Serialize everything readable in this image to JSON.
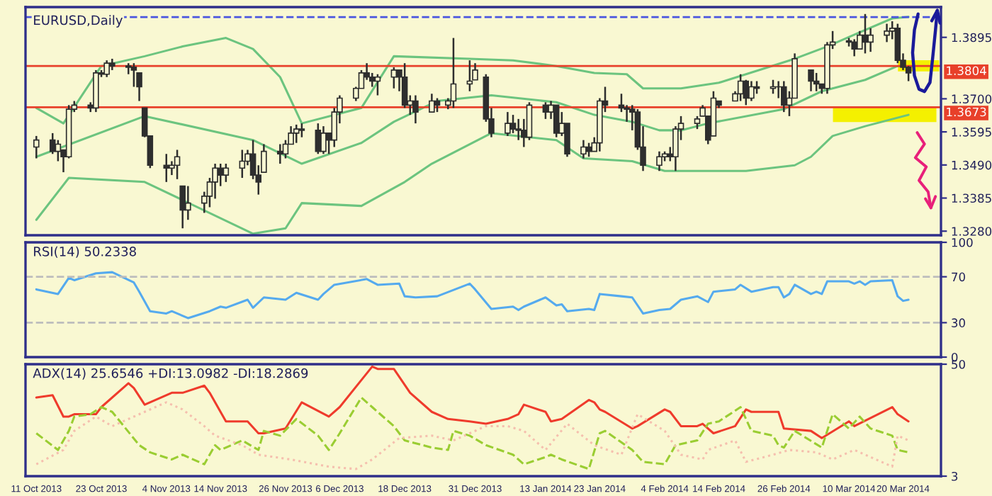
{
  "chart_data": [
    {
      "type": "candlestick",
      "title": "EURUSD,Daily",
      "xlim": [
        "2013-10-09",
        "2014-03-27"
      ],
      "ylim": [
        1.3267,
        1.3991
      ],
      "yticks": [
        {
          "value": 1.328,
          "label": "1.3280"
        },
        {
          "value": 1.3385,
          "label": "1.3385"
        },
        {
          "value": 1.349,
          "label": "1.3490"
        },
        {
          "value": 1.3595,
          "label": "1.3595"
        },
        {
          "value": 1.37,
          "label": "1.3700"
        },
        {
          "value": 1.3895,
          "label": "1.3895"
        }
      ],
      "tick_labels": "y",
      "ref_lines": [
        {
          "axis": "y",
          "value": 1.3804,
          "label": "1.3804",
          "color": "#e8402a",
          "line_style": "solid"
        },
        {
          "axis": "y",
          "value": 1.3673,
          "label": "1.3673",
          "color": "#e8402a",
          "line_style": "solid"
        },
        {
          "axis": "y",
          "value": 1.3959,
          "color": "#4a55e0",
          "line_style": "dashed"
        }
      ],
      "series": [
        {
          "type": "candlestick",
          "color": "#2e2e2e",
          "x": [
            "2013-10-11",
            "2013-10-14",
            "2013-10-15",
            "2013-10-16",
            "2013-10-17",
            "2013-10-18",
            "2013-10-21",
            "2013-10-22",
            "2013-10-23",
            "2013-10-24",
            "2013-10-25",
            "2013-10-28",
            "2013-10-29",
            "2013-10-30",
            "2013-10-31",
            "2013-11-01",
            "2013-11-04",
            "2013-11-05",
            "2013-11-06",
            "2013-11-07",
            "2013-11-08",
            "2013-11-11",
            "2013-11-12",
            "2013-11-13",
            "2013-11-14",
            "2013-11-15",
            "2013-11-18",
            "2013-11-19",
            "2013-11-20",
            "2013-11-21",
            "2013-11-22",
            "2013-11-25",
            "2013-11-26",
            "2013-11-27",
            "2013-11-28",
            "2013-11-29",
            "2013-12-02",
            "2013-12-03",
            "2013-12-04",
            "2013-12-05",
            "2013-12-06",
            "2013-12-09",
            "2013-12-10",
            "2013-12-11",
            "2013-12-12",
            "2013-12-13",
            "2013-12-16",
            "2013-12-17",
            "2013-12-18",
            "2013-12-19",
            "2013-12-20",
            "2013-12-23",
            "2013-12-24",
            "2013-12-26",
            "2013-12-27",
            "2013-12-30",
            "2013-12-31",
            "2014-01-02",
            "2014-01-03",
            "2014-01-06",
            "2014-01-07",
            "2014-01-08",
            "2014-01-09",
            "2014-01-10",
            "2014-01-13",
            "2014-01-14",
            "2014-01-15",
            "2014-01-16",
            "2014-01-17",
            "2014-01-20",
            "2014-01-21",
            "2014-01-22",
            "2014-01-23",
            "2014-01-24",
            "2014-01-27",
            "2014-01-28",
            "2014-01-29",
            "2014-01-30",
            "2014-01-31",
            "2014-02-03",
            "2014-02-04",
            "2014-02-05",
            "2014-02-06",
            "2014-02-07",
            "2014-02-10",
            "2014-02-11",
            "2014-02-12",
            "2014-02-13",
            "2014-02-14",
            "2014-02-17",
            "2014-02-18",
            "2014-02-19",
            "2014-02-20",
            "2014-02-21",
            "2014-02-24",
            "2014-02-25",
            "2014-02-26",
            "2014-02-27",
            "2014-02-28",
            "2014-03-03",
            "2014-03-04",
            "2014-03-05",
            "2014-03-06",
            "2014-03-07",
            "2014-03-10",
            "2014-03-11",
            "2014-03-12",
            "2014-03-13",
            "2014-03-14",
            "2014-03-17",
            "2014-03-18",
            "2014-03-19",
            "2014-03-20",
            "2014-03-21"
          ],
          "ohlc": [
            [
              1.3547,
              1.3582,
              1.3511,
              1.3569
            ],
            [
              1.3569,
              1.3591,
              1.3525,
              1.3533
            ],
            [
              1.3533,
              1.3569,
              1.3502,
              1.3556
            ],
            [
              1.3538,
              1.3538,
              1.3467,
              1.3516
            ],
            [
              1.3516,
              1.368,
              1.3511,
              1.3667
            ],
            [
              1.3667,
              1.3693,
              1.3658,
              1.368
            ],
            [
              1.368,
              1.3689,
              1.3658,
              1.3671
            ],
            [
              1.3671,
              1.3791,
              1.3658,
              1.3782
            ],
            [
              1.3782,
              1.3791,
              1.3769,
              1.3778
            ],
            [
              1.3778,
              1.3822,
              1.3769,
              1.3813
            ],
            [
              1.3813,
              1.3827,
              1.3791,
              1.3804
            ],
            [
              1.3804,
              1.3813,
              1.3778,
              1.38
            ],
            [
              1.38,
              1.3813,
              1.3738,
              1.3791
            ],
            [
              1.3782,
              1.3782,
              1.3693,
              1.3738
            ],
            [
              1.3671,
              1.3671,
              1.3578,
              1.3582
            ],
            [
              1.3582,
              1.3582,
              1.348,
              1.3489
            ],
            [
              1.3489,
              1.3525,
              1.3436,
              1.348
            ],
            [
              1.348,
              1.3502,
              1.3458,
              1.3489
            ],
            [
              1.3489,
              1.3538,
              1.3445,
              1.3516
            ],
            [
              1.3423,
              1.3423,
              1.3289,
              1.3347
            ],
            [
              1.3347,
              1.3423,
              1.3316,
              1.3369
            ],
            [
              1.3369,
              1.3405,
              1.3338,
              1.3391
            ],
            [
              1.3391,
              1.3449,
              1.3356,
              1.3436
            ],
            [
              1.3436,
              1.3494,
              1.3383,
              1.348
            ],
            [
              1.348,
              1.3494,
              1.3423,
              1.3458
            ],
            [
              1.3458,
              1.3494,
              1.3436,
              1.348
            ],
            [
              1.348,
              1.3538,
              1.3449,
              1.3502
            ],
            [
              1.3502,
              1.3538,
              1.3489,
              1.3525
            ],
            [
              1.3525,
              1.3569,
              1.3445,
              1.3458
            ],
            [
              1.3458,
              1.3489,
              1.3396,
              1.3436
            ],
            [
              1.3467,
              1.3556,
              1.3467,
              1.3533
            ],
            [
              1.3533,
              1.3556,
              1.3494,
              1.3525
            ],
            [
              1.3525,
              1.3569,
              1.3511,
              1.3556
            ],
            [
              1.3556,
              1.3613,
              1.3556,
              1.3591
            ],
            [
              1.3591,
              1.3618,
              1.356,
              1.3604
            ],
            [
              1.3604,
              1.3622,
              1.3578,
              1.36
            ],
            [
              1.36,
              1.3622,
              1.3525,
              1.3533
            ],
            [
              1.3533,
              1.3613,
              1.3525,
              1.3591
            ],
            [
              1.3591,
              1.3591,
              1.3525,
              1.3569
            ],
            [
              1.3569,
              1.3671,
              1.3547,
              1.3658
            ],
            [
              1.3658,
              1.3711,
              1.3622,
              1.3702
            ],
            [
              1.3702,
              1.3738,
              1.3693,
              1.3733
            ],
            [
              1.3733,
              1.3791,
              1.3733,
              1.3782
            ],
            [
              1.3782,
              1.3813,
              1.376,
              1.3769
            ],
            [
              1.3769,
              1.3782,
              1.3738,
              1.3756
            ],
            [
              1.3756,
              1.3778,
              1.3711,
              1.3769
            ],
            [
              1.3769,
              1.38,
              1.3733,
              1.3791
            ],
            [
              1.3791,
              1.3791,
              1.3724,
              1.3769
            ],
            [
              1.3769,
              1.3813,
              1.3671,
              1.368
            ],
            [
              1.368,
              1.3711,
              1.3649,
              1.3693
            ],
            [
              1.3693,
              1.3711,
              1.3622,
              1.3658
            ],
            [
              1.3658,
              1.3716,
              1.3658,
              1.3693
            ],
            [
              1.3693,
              1.3702,
              1.3658,
              1.368
            ],
            [
              1.368,
              1.3702,
              1.3667,
              1.3693
            ],
            [
              1.3693,
              1.3893,
              1.3671,
              1.3747
            ],
            [
              1.3747,
              1.3822,
              1.3724,
              1.3756
            ],
            [
              1.376,
              1.3813,
              1.376,
              1.3791
            ],
            [
              1.3769,
              1.3778,
              1.3627,
              1.3636
            ],
            [
              1.3636,
              1.3671,
              1.3578,
              1.3591
            ],
            [
              1.3591,
              1.3658,
              1.3582,
              1.3622
            ],
            [
              1.3622,
              1.3649,
              1.3591,
              1.3604
            ],
            [
              1.3604,
              1.3636,
              1.3569,
              1.36
            ],
            [
              1.36,
              1.3636,
              1.3547,
              1.3578
            ],
            [
              1.3578,
              1.3689,
              1.3569,
              1.368
            ],
            [
              1.368,
              1.3689,
              1.3636,
              1.3658
            ],
            [
              1.3658,
              1.3693,
              1.3636,
              1.368
            ],
            [
              1.368,
              1.368,
              1.3578,
              1.3591
            ],
            [
              1.3591,
              1.3658,
              1.3582,
              1.3622
            ],
            [
              1.3622,
              1.3622,
              1.3516,
              1.3525
            ],
            [
              1.3525,
              1.3569,
              1.3511,
              1.3547
            ],
            [
              1.3547,
              1.356,
              1.3516,
              1.3533
            ],
            [
              1.3533,
              1.3578,
              1.3533,
              1.356
            ],
            [
              1.356,
              1.3702,
              1.3533,
              1.3693
            ],
            [
              1.3693,
              1.3738,
              1.3658,
              1.368
            ],
            [
              1.368,
              1.3716,
              1.3658,
              1.3671
            ],
            [
              1.3671,
              1.368,
              1.3627,
              1.3667
            ],
            [
              1.3667,
              1.368,
              1.36,
              1.3658
            ],
            [
              1.3658,
              1.3667,
              1.3538,
              1.3547
            ],
            [
              1.3547,
              1.3613,
              1.3471,
              1.3489
            ],
            [
              1.3489,
              1.3533,
              1.3471,
              1.3516
            ],
            [
              1.3516,
              1.3533,
              1.3502,
              1.3525
            ],
            [
              1.3525,
              1.3547,
              1.3502,
              1.3516
            ],
            [
              1.3516,
              1.3613,
              1.3471,
              1.3604
            ],
            [
              1.3604,
              1.3645,
              1.3569,
              1.3622
            ],
            [
              1.3622,
              1.3645,
              1.3604,
              1.3636
            ],
            [
              1.3645,
              1.368,
              1.3645,
              1.3671
            ],
            [
              1.3645,
              1.3645,
              1.3556,
              1.3569
            ],
            [
              1.3582,
              1.3724,
              1.3582,
              1.3702
            ],
            [
              1.3693,
              1.3693,
              1.3671,
              1.368
            ],
            [
              1.3693,
              1.3724,
              1.3693,
              1.3716
            ],
            [
              1.3716,
              1.3778,
              1.3693,
              1.3756
            ],
            [
              1.3756,
              1.376,
              1.368,
              1.3702
            ],
            [
              1.3702,
              1.3756,
              1.3693,
              1.3738
            ],
            [
              1.3738,
              1.3756,
              1.3716,
              1.3733
            ],
            [
              1.3733,
              1.376,
              1.3716,
              1.3738
            ],
            [
              1.3738,
              1.3756,
              1.3702,
              1.3738
            ],
            [
              1.3738,
              1.3756,
              1.3658,
              1.368
            ],
            [
              1.368,
              1.3724,
              1.3645,
              1.3702
            ],
            [
              1.3702,
              1.3844,
              1.3702,
              1.3827
            ],
            [
              1.3791,
              1.3791,
              1.3724,
              1.3756
            ],
            [
              1.3756,
              1.3782,
              1.3724,
              1.3747
            ],
            [
              1.3747,
              1.3747,
              1.3716,
              1.3733
            ],
            [
              1.3733,
              1.388,
              1.3716,
              1.3871
            ],
            [
              1.3871,
              1.3915,
              1.3858,
              1.388
            ],
            [
              1.388,
              1.3893,
              1.3866,
              1.3884
            ],
            [
              1.388,
              1.3889,
              1.3835,
              1.3858
            ],
            [
              1.3858,
              1.3915,
              1.3858,
              1.3902
            ],
            [
              1.3902,
              1.3969,
              1.3844,
              1.388
            ],
            [
              1.388,
              1.3924,
              1.3849,
              1.3902
            ],
            [
              1.3902,
              1.3938,
              1.388,
              1.3915
            ],
            [
              1.3915,
              1.3946,
              1.3889,
              1.3924
            ],
            [
              1.3924,
              1.3938,
              1.3813,
              1.3822
            ],
            [
              1.3822,
              1.3844,
              1.3791,
              1.38
            ],
            [
              1.38,
              1.3804,
              1.3756,
              1.3782
            ]
          ]
        },
        {
          "type": "line",
          "color": "#6cc47f",
          "x": [
            "2013-10-11",
            "2013-10-16",
            "2013-10-23",
            "2013-10-31",
            "2013-11-07",
            "2013-11-15",
            "2013-11-20",
            "2013-11-25",
            "2013-11-29",
            "2013-12-10",
            "2013-12-16",
            "2013-12-30",
            "2014-01-07",
            "2014-01-15",
            "2014-01-22",
            "2014-01-28",
            "2014-01-31",
            "2014-02-07",
            "2014-02-14",
            "2014-02-28",
            "2014-03-06",
            "2014-03-12",
            "2014-03-18",
            "2014-03-21"
          ],
          "values": [
            1.3671,
            1.3622,
            1.3804,
            1.3835,
            1.3866,
            1.3893,
            1.3858,
            1.3769,
            1.3622,
            1.3671,
            1.3835,
            1.3827,
            1.3822,
            1.3804,
            1.3782,
            1.3778,
            1.3733,
            1.3733,
            1.3751,
            1.3827,
            1.3866,
            1.3911,
            1.3955,
            1.396
          ]
        },
        {
          "type": "line",
          "color": "#6cc47f",
          "x": [
            "2013-10-11",
            "2013-10-31",
            "2013-11-20",
            "2013-11-29",
            "2013-12-10",
            "2013-12-16",
            "2013-12-24",
            "2014-01-03",
            "2014-01-15",
            "2014-01-22",
            "2014-01-29",
            "2014-02-03",
            "2014-02-07",
            "2014-02-12",
            "2014-02-26",
            "2014-03-05",
            "2014-03-13",
            "2014-03-19",
            "2014-03-21"
          ],
          "values": [
            1.3516,
            1.3645,
            1.3569,
            1.3494,
            1.356,
            1.3627,
            1.3693,
            1.3711,
            1.3689,
            1.3649,
            1.3627,
            1.36,
            1.36,
            1.3622,
            1.3667,
            1.3724,
            1.376,
            1.3804,
            1.38
          ]
        },
        {
          "type": "line",
          "color": "#6cc47f",
          "x": [
            "2013-10-11",
            "2013-10-17",
            "2013-10-31",
            "2013-11-20",
            "2013-11-26",
            "2013-11-29",
            "2013-12-10",
            "2013-12-18",
            "2013-12-23",
            "2014-01-03",
            "2014-01-15",
            "2014-01-20",
            "2014-01-29",
            "2014-02-04",
            "2014-02-07",
            "2014-02-19",
            "2014-02-28",
            "2014-03-03",
            "2014-03-07",
            "2014-03-13",
            "2014-03-21"
          ],
          "values": [
            1.3316,
            1.3449,
            1.3436,
            1.3272,
            1.3289,
            1.3369,
            1.336,
            1.3436,
            1.3494,
            1.3591,
            1.3569,
            1.3511,
            1.3502,
            1.3471,
            1.3471,
            1.3471,
            1.3489,
            1.3516,
            1.3582,
            1.3613,
            1.3649
          ]
        }
      ]
    },
    {
      "type": "line",
      "title": "RSI(14) 50.2338",
      "xlim": [
        "2013-10-09",
        "2014-03-27"
      ],
      "ylim": [
        0,
        100
      ],
      "yticks": [
        0,
        30,
        70,
        100
      ],
      "tick_labels": "y",
      "ref_lines": [
        {
          "axis": "y",
          "value": 70,
          "color": "#bdbdbd",
          "line_style": "dashed"
        },
        {
          "axis": "y",
          "value": 30,
          "color": "#bdbdbd",
          "line_style": "dashed"
        }
      ],
      "series": [
        {
          "color": "#55aaee",
          "x": [
            "2013-10-11",
            "2013-10-15",
            "2013-10-17",
            "2013-10-18",
            "2013-10-22",
            "2013-10-25",
            "2013-10-29",
            "2013-10-30",
            "2013-11-01",
            "2013-11-04",
            "2013-11-05",
            "2013-11-08",
            "2013-11-12",
            "2013-11-14",
            "2013-11-15",
            "2013-11-19",
            "2013-11-20",
            "2013-11-22",
            "2013-11-26",
            "2013-11-28",
            "2013-12-02",
            "2013-12-03",
            "2013-12-05",
            "2013-12-11",
            "2013-12-13",
            "2013-12-17",
            "2013-12-18",
            "2013-12-20",
            "2013-12-24",
            "2013-12-30",
            "2013-12-31",
            "2014-01-03",
            "2014-01-07",
            "2014-01-08",
            "2014-01-09",
            "2014-01-13",
            "2014-01-15",
            "2014-01-16",
            "2014-01-17",
            "2014-01-21",
            "2014-01-22",
            "2014-01-23",
            "2014-01-27",
            "2014-01-29",
            "2014-01-31",
            "2014-02-03",
            "2014-02-05",
            "2014-02-07",
            "2014-02-10",
            "2014-02-12",
            "2014-02-13",
            "2014-02-17",
            "2014-02-18",
            "2014-02-20",
            "2014-02-24",
            "2014-02-25",
            "2014-02-26",
            "2014-02-27",
            "2014-02-28",
            "2014-03-03",
            "2014-03-04",
            "2014-03-05",
            "2014-03-06",
            "2014-03-10",
            "2014-03-11",
            "2014-03-12",
            "2014-03-13",
            "2014-03-14",
            "2014-03-18",
            "2014-03-19",
            "2014-03-20",
            "2014-03-21"
          ],
          "values": [
            59,
            55,
            69,
            67,
            73,
            74,
            65,
            57,
            40,
            38,
            40,
            34,
            40,
            44,
            43,
            50,
            43,
            52,
            50,
            56,
            50,
            55,
            63,
            68,
            63,
            64,
            53,
            52,
            53,
            64,
            59,
            42,
            44,
            41,
            44,
            52,
            45,
            46,
            40,
            42,
            41,
            55,
            53,
            52,
            38,
            41,
            42,
            50,
            53,
            48,
            57,
            59,
            63,
            57,
            61,
            61,
            52,
            55,
            63,
            55,
            57,
            55,
            66,
            66,
            64,
            66,
            63,
            66,
            67,
            53,
            49,
            50
          ]
        }
      ]
    },
    {
      "type": "line",
      "title": "ADX(14) 25.6546 +DI:13.0982 -DI:18.2869",
      "xlim": [
        "2013-10-09",
        "2014-03-27"
      ],
      "xticks": [
        {
          "value": "2013-10-11",
          "label": "11 Oct 2013"
        },
        {
          "value": "2013-10-23",
          "label": "23 Oct 2013"
        },
        {
          "value": "2013-11-04",
          "label": "4 Nov 2013"
        },
        {
          "value": "2013-11-14",
          "label": "14 Nov 2013"
        },
        {
          "value": "2013-11-26",
          "label": "26 Nov 2013"
        },
        {
          "value": "2013-12-06",
          "label": "6 Dec 2013"
        },
        {
          "value": "2013-12-18",
          "label": "18 Dec 2013"
        },
        {
          "value": "2013-12-31",
          "label": "31 Dec 2013"
        },
        {
          "value": "2014-01-13",
          "label": "13 Jan 2014"
        },
        {
          "value": "2014-01-23",
          "label": "23 Jan 2014"
        },
        {
          "value": "2014-02-04",
          "label": "4 Feb 2014"
        },
        {
          "value": "2014-02-14",
          "label": "14 Feb 2014"
        },
        {
          "value": "2014-02-26",
          "label": "26 Feb 2014"
        },
        {
          "value": "2014-03-10",
          "label": "10 Mar 2014"
        },
        {
          "value": "2014-03-20",
          "label": "20 Mar 2014"
        }
      ],
      "ylim": [
        3,
        50
      ],
      "yticks": [
        3,
        50
      ],
      "series": [
        {
          "color": "#ef3b2c",
          "line_style": "solid",
          "x": [
            "2013-10-11",
            "2013-10-14",
            "2013-10-16",
            "2013-10-17",
            "2013-10-18",
            "2013-10-22",
            "2013-10-23",
            "2013-10-28",
            "2013-10-29",
            "2013-10-31",
            "2013-11-05",
            "2013-11-07",
            "2013-11-11",
            "2013-11-12",
            "2013-11-15",
            "2013-11-19",
            "2013-11-21",
            "2013-11-22",
            "2013-11-26",
            "2013-11-29",
            "2013-12-04",
            "2013-12-06",
            "2013-12-12",
            "2013-12-13",
            "2013-12-16",
            "2013-12-19",
            "2013-12-23",
            "2013-12-26",
            "2013-12-30",
            "2014-01-02",
            "2014-01-06",
            "2014-01-08",
            "2014-01-09",
            "2014-01-13",
            "2014-01-14",
            "2014-01-16",
            "2014-01-21",
            "2014-01-22",
            "2014-01-23",
            "2014-01-24",
            "2014-01-29",
            "2014-01-30",
            "2014-02-04",
            "2014-02-05",
            "2014-02-07",
            "2014-02-10",
            "2014-02-11",
            "2014-02-13",
            "2014-02-17",
            "2014-02-19",
            "2014-02-20",
            "2014-02-25",
            "2014-02-26",
            "2014-03-03",
            "2014-03-05",
            "2014-03-10",
            "2014-03-11",
            "2014-03-18",
            "2014-03-19",
            "2014-03-21"
          ],
          "values": [
            36,
            37,
            28,
            28,
            29,
            29,
            32,
            42,
            40,
            33,
            38,
            38,
            41,
            38,
            26,
            26,
            21,
            21,
            23,
            34,
            28,
            32,
            49,
            48,
            48,
            38,
            30,
            27,
            26,
            25,
            27,
            29,
            33,
            30,
            26,
            27,
            35,
            34,
            31,
            30,
            23,
            24,
            31,
            30,
            24,
            24,
            25,
            21,
            24,
            31,
            30,
            30,
            23,
            22,
            19,
            26,
            24,
            32,
            29,
            26
          ]
        },
        {
          "color": "#9acd32",
          "line_style": "dashed",
          "x": [
            "2013-10-11",
            "2013-10-15",
            "2013-10-17",
            "2013-10-18",
            "2013-10-21",
            "2013-10-23",
            "2013-10-25",
            "2013-10-30",
            "2013-11-01",
            "2013-11-05",
            "2013-11-07",
            "2013-11-11",
            "2013-11-13",
            "2013-11-14",
            "2013-11-18",
            "2013-11-21",
            "2013-11-22",
            "2013-11-25",
            "2013-11-28",
            "2013-12-02",
            "2013-12-04",
            "2013-12-06",
            "2013-12-10",
            "2013-12-12",
            "2013-12-16",
            "2013-12-18",
            "2013-12-23",
            "2013-12-26",
            "2013-12-27",
            "2013-12-30",
            "2014-01-02",
            "2014-01-07",
            "2014-01-09",
            "2014-01-13",
            "2014-01-14",
            "2014-01-16",
            "2014-01-21",
            "2014-01-23",
            "2014-01-24",
            "2014-01-29",
            "2014-01-31",
            "2014-02-04",
            "2014-02-06",
            "2014-02-10",
            "2014-02-12",
            "2014-02-14",
            "2014-02-18",
            "2014-02-20",
            "2014-02-24",
            "2014-02-25",
            "2014-02-26",
            "2014-02-28",
            "2014-03-05",
            "2014-03-07",
            "2014-03-10",
            "2014-03-12",
            "2014-03-14",
            "2014-03-18",
            "2014-03-19",
            "2014-03-21"
          ],
          "values": [
            21,
            14,
            22,
            28,
            29,
            32,
            30,
            16,
            13,
            10,
            12,
            8,
            16,
            14,
            18,
            14,
            22,
            20,
            27,
            20,
            14,
            21,
            36,
            32,
            24,
            18,
            15,
            14,
            22,
            20,
            16,
            12,
            8,
            11,
            12,
            10,
            6,
            21,
            22,
            14,
            9,
            8,
            16,
            18,
            25,
            26,
            32,
            22,
            20,
            16,
            15,
            22,
            15,
            29,
            23,
            28,
            23,
            20,
            14,
            13
          ]
        },
        {
          "color": "#f5bfae",
          "line_style": "dotted",
          "x": [
            "2013-10-11",
            "2013-10-16",
            "2013-10-18",
            "2013-10-22",
            "2013-10-25",
            "2013-10-31",
            "2013-11-04",
            "2013-11-07",
            "2013-11-11",
            "2013-11-13",
            "2013-11-18",
            "2013-11-21",
            "2013-11-27",
            "2013-12-04",
            "2013-12-09",
            "2013-12-12",
            "2013-12-17",
            "2013-12-23",
            "2013-12-27",
            "2014-01-02",
            "2014-01-06",
            "2014-01-09",
            "2014-01-13",
            "2014-01-17",
            "2014-01-22",
            "2014-01-27",
            "2014-01-30",
            "2014-02-04",
            "2014-02-07",
            "2014-02-11",
            "2014-02-12",
            "2014-02-17",
            "2014-02-19",
            "2014-02-24",
            "2014-02-27",
            "2014-03-04",
            "2014-03-07",
            "2014-03-11",
            "2014-03-13",
            "2014-03-18",
            "2014-03-19",
            "2014-03-21"
          ],
          "values": [
            8,
            14,
            22,
            28,
            24,
            30,
            34,
            31,
            24,
            20,
            16,
            12,
            10,
            7,
            6,
            10,
            19,
            20,
            18,
            24,
            24,
            22,
            14,
            25,
            16,
            12,
            29,
            22,
            12,
            10,
            14,
            18,
            9,
            12,
            14,
            13,
            10,
            14,
            12,
            7,
            20,
            18
          ]
        }
      ]
    }
  ]
}
